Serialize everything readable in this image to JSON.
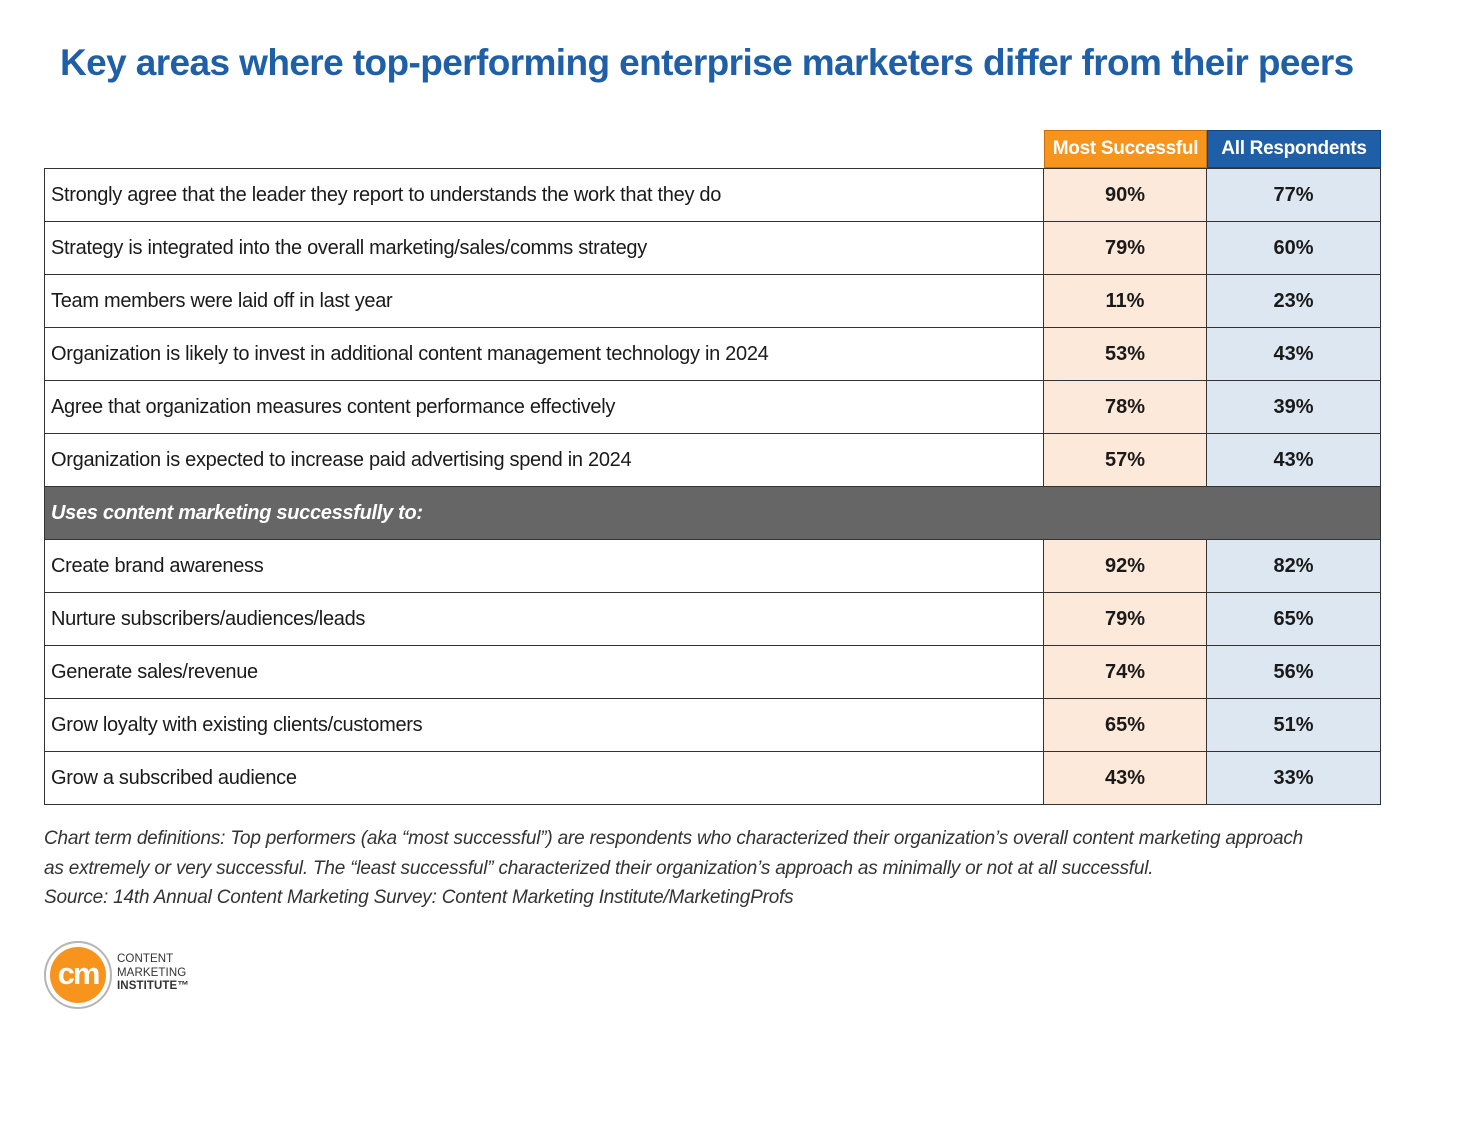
{
  "title": "Key areas where top-performing enterprise marketers differ from their peers",
  "chart_data": {
    "type": "table",
    "columns": [
      "Most Successful",
      "All Respondents"
    ],
    "colors": {
      "most_successful": "#f7941d",
      "all_respondents": "#1f5fa8",
      "section": "#666666"
    },
    "rows": [
      {
        "label": "Strongly agree that the leader they report to understands the work that they do",
        "most_successful": "90%",
        "all_respondents": "77%"
      },
      {
        "label": "Strategy is integrated into the overall marketing/sales/comms strategy",
        "most_successful": "79%",
        "all_respondents": "60%"
      },
      {
        "label": "Team members were laid off in last year",
        "most_successful": "11%",
        "all_respondents": "23%"
      },
      {
        "label": "Organization is likely to invest in additional content management technology in 2024",
        "most_successful": "53%",
        "all_respondents": "43%"
      },
      {
        "label": "Agree that organization measures content performance effectively",
        "most_successful": "78%",
        "all_respondents": "39%"
      },
      {
        "label": "Organization is expected to increase paid advertising spend in 2024",
        "most_successful": "57%",
        "all_respondents": "43%"
      }
    ],
    "section_label": "Uses content marketing successfully to:",
    "section_rows": [
      {
        "label": "Create brand awareness",
        "most_successful": "92%",
        "all_respondents": "82%"
      },
      {
        "label": "Nurture subscribers/audiences/leads",
        "most_successful": "79%",
        "all_respondents": "65%"
      },
      {
        "label": "Generate sales/revenue",
        "most_successful": "74%",
        "all_respondents": "56%"
      },
      {
        "label": "Grow loyalty with existing clients/customers",
        "most_successful": "65%",
        "all_respondents": "51%"
      },
      {
        "label": "Grow a subscribed audience",
        "most_successful": "43%",
        "all_respondents": "33%"
      }
    ]
  },
  "footnote": {
    "line1": "Chart term definitions: Top performers (aka “most successful”) are respondents who characterized their organization’s overall content marketing approach",
    "line2": "as extremely or very successful. The “least successful” characterized their organization’s approach as minimally or not at all successful.",
    "source": "Source: 14th Annual Content Marketing Survey: Content Marketing Institute/MarketingProfs"
  },
  "logo": {
    "mark": "cm",
    "text_lines": [
      "CONTENT",
      "MARKETING",
      "INSTITUTE™"
    ]
  }
}
